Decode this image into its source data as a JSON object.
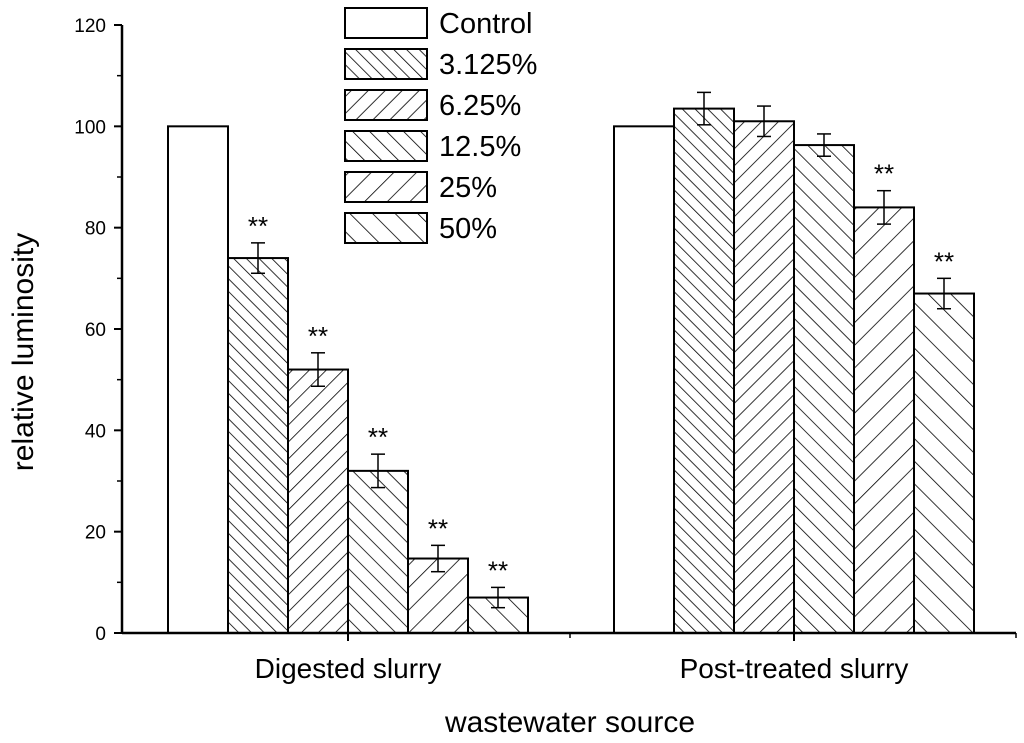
{
  "chart_data": {
    "type": "bar",
    "title": "",
    "xlabel": "wastewater source",
    "ylabel": "relative luminosity",
    "ylim": [
      0,
      120
    ],
    "yticks": [
      0,
      20,
      40,
      60,
      80,
      100,
      120
    ],
    "categories": [
      "Digested slurry",
      "Post-treated slurry"
    ],
    "series": [
      {
        "name": "Control",
        "pattern": "none",
        "values": [
          100,
          100
        ],
        "errors": [
          0,
          0
        ],
        "significance": [
          "",
          ""
        ]
      },
      {
        "name": "3.125%",
        "pattern": "backslash-dense",
        "values": [
          74,
          103.5
        ],
        "errors": [
          3,
          3.2
        ],
        "significance": [
          "**",
          ""
        ]
      },
      {
        "name": "6.25%",
        "pattern": "slash",
        "values": [
          52,
          101
        ],
        "errors": [
          3.3,
          3
        ],
        "significance": [
          "**",
          ""
        ]
      },
      {
        "name": "12.5%",
        "pattern": "backslash",
        "values": [
          32,
          96.3
        ],
        "errors": [
          3.3,
          2.2
        ],
        "significance": [
          "**",
          ""
        ]
      },
      {
        "name": "25%",
        "pattern": "slash-sparse",
        "values": [
          14.7,
          84
        ],
        "errors": [
          2.6,
          3.3
        ],
        "significance": [
          "**",
          "**"
        ]
      },
      {
        "name": "50%",
        "pattern": "backslash-sparse",
        "values": [
          7,
          67
        ],
        "errors": [
          2,
          3
        ],
        "significance": [
          "**",
          "**"
        ]
      }
    ],
    "legend_position": "top-center",
    "grid": false
  }
}
